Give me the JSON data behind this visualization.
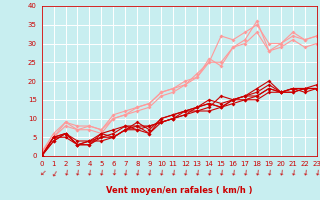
{
  "xlabel": "Vent moyen/en rafales ( km/h )",
  "background_color": "#c8eef0",
  "grid_color": "#ffffff",
  "xlim": [
    0,
    23
  ],
  "ylim": [
    0,
    40
  ],
  "yticks": [
    0,
    5,
    10,
    15,
    20,
    25,
    30,
    35,
    40
  ],
  "xticks": [
    0,
    1,
    2,
    3,
    4,
    5,
    6,
    7,
    8,
    9,
    10,
    11,
    12,
    13,
    14,
    15,
    16,
    17,
    18,
    19,
    20,
    21,
    22,
    23
  ],
  "series_dark": [
    [
      0,
      1,
      2,
      3,
      4,
      5,
      6,
      7,
      8,
      9,
      10,
      11,
      12,
      13,
      14,
      15,
      16,
      17,
      18,
      19,
      20,
      21,
      22,
      23
    ],
    [
      0,
      4,
      6,
      3,
      4,
      6,
      7,
      8,
      8,
      6,
      10,
      11,
      12,
      13,
      14,
      13,
      15,
      16,
      17,
      19,
      17,
      17,
      18,
      18
    ]
  ],
  "series_dark2": [
    [
      0,
      1,
      2,
      3,
      4,
      5,
      6,
      7,
      8,
      9,
      10,
      11,
      12,
      13,
      14,
      15,
      16,
      17,
      18,
      19,
      20,
      21,
      22,
      23
    ],
    [
      0,
      5,
      6,
      3,
      3,
      5,
      5,
      7,
      9,
      7,
      10,
      11,
      12,
      13,
      14,
      13,
      15,
      16,
      18,
      20,
      17,
      18,
      18,
      19
    ]
  ],
  "series_dark3": [
    [
      0,
      1,
      2,
      3,
      4,
      5,
      6,
      7,
      8,
      9,
      10,
      11,
      12,
      13,
      14,
      15,
      16,
      17,
      18,
      19,
      20,
      21,
      22,
      23
    ],
    [
      0,
      5,
      6,
      4,
      4,
      5,
      6,
      8,
      7,
      6,
      9,
      10,
      12,
      12,
      13,
      16,
      15,
      15,
      16,
      18,
      17,
      18,
      17,
      18
    ]
  ],
  "series_dark4": [
    [
      0,
      1,
      2,
      3,
      4,
      5,
      6,
      7,
      8,
      9,
      10,
      11,
      12,
      13,
      14,
      15,
      16,
      17,
      18,
      19,
      20,
      21,
      22,
      23
    ],
    [
      0,
      5,
      5,
      3,
      4,
      4,
      5,
      7,
      8,
      8,
      9,
      10,
      11,
      13,
      15,
      14,
      15,
      16,
      16,
      18,
      17,
      18,
      18,
      18
    ]
  ],
  "series_dark5": [
    [
      0,
      1,
      2,
      3,
      4,
      5,
      6,
      7,
      8,
      9,
      10,
      11,
      12,
      13,
      14,
      15,
      16,
      17,
      18,
      19,
      20,
      21,
      22,
      23
    ],
    [
      0,
      4,
      6,
      3,
      3,
      6,
      5,
      7,
      7,
      8,
      9,
      10,
      11,
      12,
      12,
      13,
      14,
      15,
      15,
      17,
      17,
      17,
      18,
      18
    ]
  ],
  "series_light": [
    [
      0,
      1,
      2,
      3,
      4,
      5,
      6,
      7,
      8,
      9,
      10,
      11,
      12,
      13,
      14,
      15,
      16,
      17,
      18,
      19,
      20,
      21,
      22,
      23
    ],
    [
      1,
      6,
      9,
      8,
      8,
      7,
      11,
      12,
      13,
      14,
      17,
      18,
      19,
      22,
      25,
      32,
      31,
      33,
      35,
      30,
      30,
      33,
      31,
      32
    ]
  ],
  "series_light2": [
    [
      0,
      1,
      2,
      3,
      4,
      5,
      6,
      7,
      8,
      9,
      10,
      11,
      12,
      13,
      14,
      15,
      16,
      17,
      18,
      19,
      20,
      21,
      22,
      23
    ],
    [
      1,
      5,
      8,
      7,
      7,
      6,
      10,
      11,
      12,
      13,
      16,
      17,
      19,
      21,
      26,
      24,
      29,
      31,
      36,
      28,
      29,
      31,
      29,
      30
    ]
  ],
  "series_light3": [
    [
      0,
      1,
      2,
      3,
      4,
      5,
      6,
      7,
      8,
      9,
      10,
      11,
      12,
      13,
      14,
      15,
      16,
      17,
      18,
      19,
      20,
      21,
      22,
      23
    ],
    [
      1,
      5,
      9,
      7,
      8,
      7,
      10,
      11,
      13,
      14,
      17,
      18,
      20,
      21,
      25,
      25,
      29,
      30,
      33,
      28,
      30,
      32,
      31,
      32
    ]
  ],
  "dark_color": "#cc0000",
  "light_color": "#ff9999",
  "marker_size": 2.0,
  "line_width": 0.8,
  "arrow_rotations": [
    45,
    30,
    10,
    10,
    10,
    10,
    5,
    10,
    10,
    10,
    10,
    10,
    10,
    10,
    10,
    10,
    10,
    10,
    10,
    10,
    10,
    10,
    10,
    10
  ]
}
